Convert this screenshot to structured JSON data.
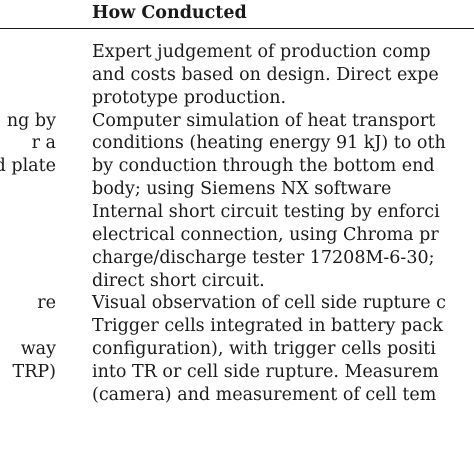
{
  "table": {
    "header": {
      "how_conducted": "How Conducted"
    },
    "left_column_fragments": [
      "ng by",
      "r a",
      "d plate",
      "re",
      "way",
      "TRP)"
    ],
    "right_column_lines": [
      "Expert judgement of production comp",
      "and costs based on design. Direct expe",
      "prototype production.",
      "Computer simulation of heat transport",
      "conditions (heating energy 91 kJ) to oth",
      "by conduction through the bottom end",
      "body; using Siemens NX software",
      "Internal short circuit testing by enforci",
      "electrical connection, using Chroma pr",
      "charge/discharge tester 17208M-6-30;",
      "direct short circuit.",
      "Visual observation of cell side rupture c",
      "Trigger cells integrated in battery pack",
      "configuration), with trigger cells positi",
      "into TR or cell side rupture. Measurem",
      "(camera) and measurement of cell tem"
    ]
  }
}
